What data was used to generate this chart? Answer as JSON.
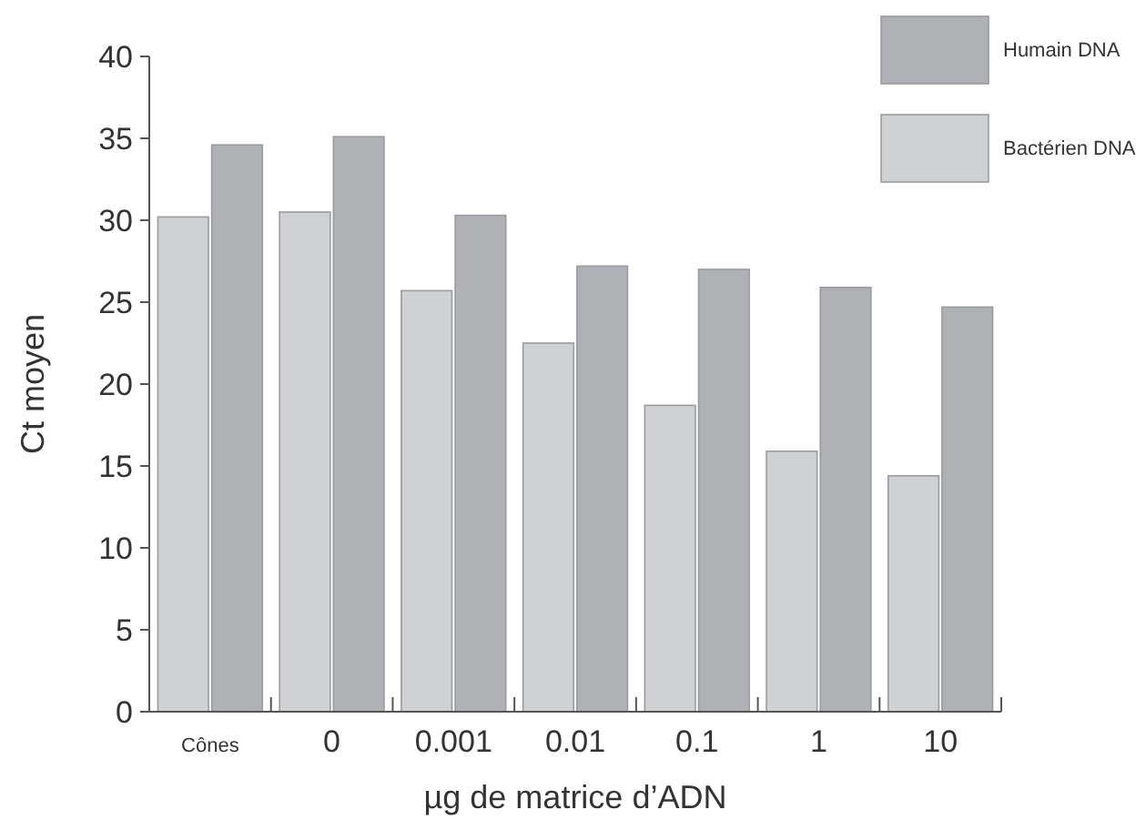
{
  "chart_data": {
    "type": "bar",
    "xlabel": "µg de matrice d’ADN",
    "ylabel": "Ct moyen",
    "categories": [
      "Cônes",
      "0",
      "0.001",
      "0.01",
      "0.1",
      "1",
      "10"
    ],
    "series": [
      {
        "name": "Bactérien DNA",
        "color": "#d0d1d3",
        "values": [
          30.2,
          30.5,
          25.7,
          22.5,
          18.7,
          15.9,
          14.4
        ]
      },
      {
        "name": "Humain DNA",
        "color": "#b0b1b5",
        "values": [
          34.6,
          35.1,
          30.3,
          27.2,
          27.0,
          25.9,
          24.7
        ]
      }
    ],
    "ylim": [
      0,
      40
    ],
    "yticks": [
      0,
      5,
      10,
      15,
      20,
      25,
      30,
      35,
      40
    ],
    "grid": false,
    "legend": "top right"
  }
}
